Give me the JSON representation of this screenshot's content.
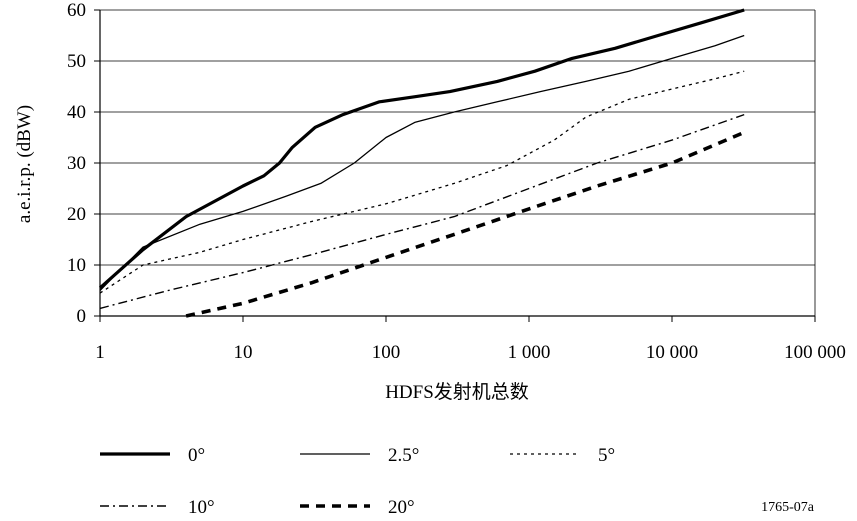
{
  "chart_data": {
    "type": "line",
    "xscale": "log",
    "xlim": [
      1,
      100000
    ],
    "ylim": [
      0,
      60
    ],
    "grid": "horizontal",
    "xlabel": "HDFS发射机总数",
    "ylabel": "a.e.i.r.p. (dBW)",
    "x_ticks": [
      "1",
      "10",
      "100",
      "1 000",
      "10 000",
      "100 000"
    ],
    "y_ticks": [
      "0",
      "10",
      "20",
      "30",
      "40",
      "50",
      "60"
    ],
    "legend_position": "bottom",
    "series": [
      {
        "name": "0°",
        "style": "solid-thick",
        "x": [
          1,
          2,
          4,
          10,
          14,
          18,
          22,
          32,
          50,
          90,
          160,
          280,
          600,
          1100,
          2000,
          4000,
          8000,
          16000,
          32000
        ],
        "y": [
          5.5,
          13,
          19.5,
          25.5,
          27.5,
          30,
          33,
          37,
          39.5,
          42,
          43,
          44,
          46,
          48,
          50.5,
          52.5,
          55,
          57.5,
          60
        ]
      },
      {
        "name": "2.5°",
        "style": "solid-thin",
        "x": [
          1,
          2,
          5,
          10,
          20,
          35,
          60,
          100,
          160,
          300,
          600,
          1200,
          2500,
          5000,
          10000,
          20000,
          32000
        ],
        "y": [
          5,
          13.5,
          18,
          20.5,
          23.5,
          26,
          30,
          35,
          38,
          40,
          42,
          44,
          46,
          48,
          50.5,
          53,
          55
        ]
      },
      {
        "name": "5°",
        "style": "dotted",
        "x": [
          1,
          2,
          5,
          10,
          30,
          100,
          300,
          700,
          1500,
          2500,
          5000,
          10000,
          20000,
          32000
        ],
        "y": [
          4.5,
          10,
          12.5,
          15,
          18.5,
          22,
          26,
          29.5,
          34.5,
          39,
          42.5,
          44.5,
          46.5,
          48
        ]
      },
      {
        "name": "10°",
        "style": "dash-dot",
        "x": [
          1,
          3,
          10,
          30,
          100,
          300,
          1000,
          3000,
          10000,
          32000
        ],
        "y": [
          1.5,
          5,
          8.5,
          12,
          16,
          19.5,
          25,
          30,
          34.5,
          39.5
        ]
      },
      {
        "name": "20°",
        "style": "dashed-thick",
        "x": [
          4,
          10,
          30,
          100,
          300,
          1000,
          3000,
          10000,
          32000
        ],
        "y": [
          0,
          2.5,
          6.5,
          11.5,
          16,
          21,
          25.5,
          30,
          36
        ]
      }
    ]
  },
  "note": "1765-07a"
}
